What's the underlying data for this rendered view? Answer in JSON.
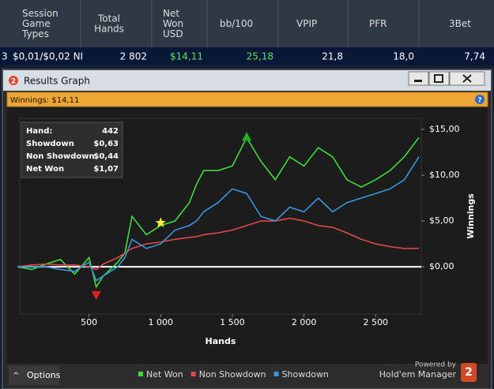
{
  "table": {
    "headers": [
      "Session Game Types",
      "Total Hands",
      "Net Won USD",
      "bb/100",
      "VPIP",
      "PFR",
      "3Bet"
    ],
    "row": [
      "3",
      "$0,01/$0,02 NI",
      "2 802",
      "$14,11",
      "25,18",
      "21,8",
      "18,0",
      "7,74"
    ]
  },
  "window": {
    "title": "Results Graph",
    "winnings_bar": "Winnings: $14,11",
    "options": "Options",
    "powered_by": "Powered by",
    "brand": "Hold'em Manager",
    "brand_badge": "2",
    "title_badge": "2"
  },
  "tooltip": {
    "rows": [
      [
        "Hand:",
        "442"
      ],
      [
        "Showdown",
        "$0,63"
      ],
      [
        "Non Showdown",
        "$0,44"
      ],
      [
        "Net Won",
        "$1,07"
      ]
    ]
  },
  "chart_data": {
    "type": "line",
    "xlabel": "Hands",
    "ylabel": "Winnings",
    "x": [
      0,
      100,
      200,
      300,
      400,
      500,
      550,
      600,
      700,
      750,
      800,
      900,
      1000,
      1100,
      1200,
      1250,
      1300,
      1400,
      1500,
      1600,
      1700,
      1800,
      1900,
      2000,
      2100,
      2200,
      2300,
      2400,
      2500,
      2600,
      2700,
      2802
    ],
    "series": [
      {
        "name": "Net Won",
        "color": "#3ddc3d",
        "values": [
          0,
          -0.3,
          0.3,
          0.8,
          -0.8,
          1.0,
          -2.2,
          -1,
          0.5,
          1.5,
          5.5,
          3.5,
          4.5,
          5,
          7,
          9,
          10.5,
          10.5,
          11,
          14.1,
          11.5,
          9.5,
          12,
          11,
          13,
          12,
          9.5,
          8.7,
          9.5,
          10.5,
          12,
          14.1
        ]
      },
      {
        "name": "Non Showdown",
        "color": "#e04848",
        "values": [
          0,
          0.2,
          0.3,
          0.2,
          0.2,
          0,
          -0.3,
          0.3,
          1,
          1.5,
          2,
          2.5,
          2.7,
          3,
          3.2,
          3.3,
          3.5,
          3.7,
          4,
          4.5,
          5,
          5,
          5.3,
          5,
          4.5,
          4.3,
          3.7,
          3,
          2.5,
          2.2,
          2,
          2
        ]
      },
      {
        "name": "Showdown",
        "color": "#3a96dc",
        "values": [
          0,
          0,
          0,
          -0.3,
          -0.5,
          0.5,
          -1.5,
          -1,
          0,
          1,
          3,
          2,
          2.5,
          4,
          4.5,
          5,
          6,
          7,
          8.5,
          8,
          5.5,
          5,
          6.5,
          6,
          7.5,
          6,
          7,
          7.5,
          8,
          8.5,
          9.5,
          12
        ]
      }
    ],
    "markers": [
      {
        "x": 1600,
        "y": 14.1,
        "color": "#22b022",
        "shape": "up"
      },
      {
        "x": 550,
        "y": -3,
        "color": "#e02020",
        "shape": "down"
      },
      {
        "x": 1000,
        "y": 4.8,
        "color": "#ffee33",
        "shape": "star"
      }
    ],
    "xlim": [
      0,
      2802
    ],
    "ylim": [
      -4.9,
      16.2
    ],
    "xticks": [
      500,
      {
        "value": 1000,
        "label": "1 000"
      },
      {
        "value": 1500,
        "label": "1 500"
      },
      {
        "value": 2000,
        "label": "2 000"
      },
      {
        "value": 2500,
        "label": "2 500"
      }
    ],
    "yticks": [
      {
        "value": 0,
        "label": "$0,00"
      },
      {
        "value": 5,
        "label": "$5,00"
      },
      {
        "value": 10,
        "label": "$10,00"
      },
      {
        "value": 15,
        "label": "$15,00"
      }
    ],
    "zero_line": true
  }
}
